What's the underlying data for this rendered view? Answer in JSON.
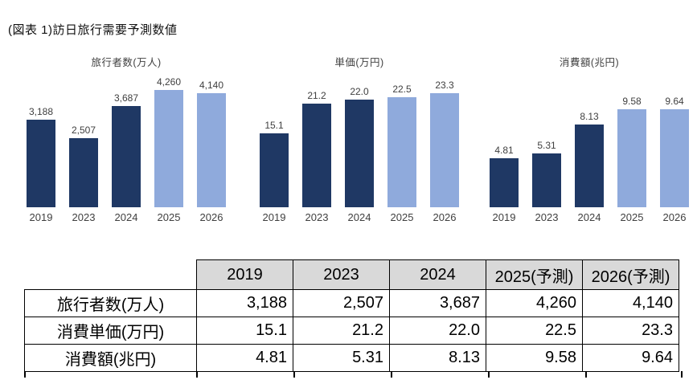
{
  "page": {
    "title": "(図表 1)訪日旅行需要予測数値"
  },
  "colors": {
    "bar_actual": "#1F3864",
    "bar_forecast": "#8FAADC",
    "table_header_bg": "#D9D9D9",
    "border": "#000000"
  },
  "forecast_years": [
    "2025",
    "2026"
  ],
  "chart_data": [
    {
      "type": "bar",
      "title": "旅行者数(万人)",
      "categories": [
        "2019",
        "2023",
        "2024",
        "2025",
        "2026"
      ],
      "values": [
        3188,
        2507,
        3687,
        4260,
        4140
      ],
      "labels": [
        "3,188",
        "2,507",
        "3,687",
        "4,260",
        "4,140"
      ],
      "ylim": [
        0,
        4380
      ],
      "grid": false,
      "legend": "none"
    },
    {
      "type": "bar",
      "title": "単価(万円)",
      "categories": [
        "2019",
        "2023",
        "2024",
        "2025",
        "2026"
      ],
      "values": [
        15.1,
        21.2,
        22.0,
        22.5,
        23.3
      ],
      "labels": [
        "15.1",
        "21.2",
        "22.0",
        "22.5",
        "23.3"
      ],
      "ylim": [
        0,
        24.6
      ],
      "grid": false,
      "legend": "none"
    },
    {
      "type": "bar",
      "title": "消費額(兆円)",
      "categories": [
        "2019",
        "2023",
        "2024",
        "2025",
        "2026"
      ],
      "values": [
        4.81,
        5.31,
        8.13,
        9.58,
        9.64
      ],
      "labels": [
        "4.81",
        "5.31",
        "8.13",
        "9.58",
        "9.64"
      ],
      "ylim": [
        0,
        11.8
      ],
      "grid": false,
      "legend": "none"
    }
  ],
  "table": {
    "columns": [
      "",
      "2019",
      "2023",
      "2024",
      "2025(予測)",
      "2026(予測)"
    ],
    "rows": [
      {
        "label": "旅行者数(万人)",
        "values": [
          "3,188",
          "2,507",
          "3,687",
          "4,260",
          "4,140"
        ]
      },
      {
        "label": "消費単価(万円)",
        "values": [
          "15.1",
          "21.2",
          "22.0",
          "22.5",
          "23.3"
        ]
      },
      {
        "label": "消費額(兆円)",
        "values": [
          "4.81",
          "5.31",
          "8.13",
          "9.58",
          "9.64"
        ]
      }
    ]
  }
}
